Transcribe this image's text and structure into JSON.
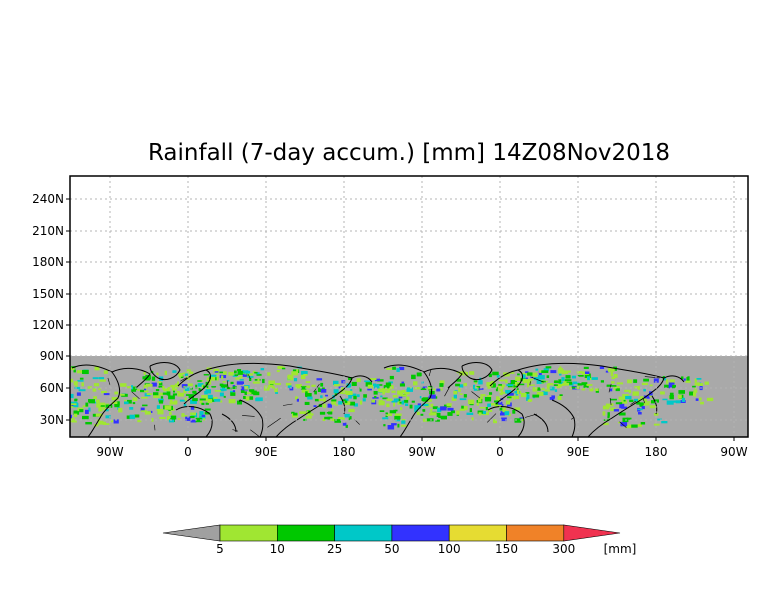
{
  "title": "Rainfall (7-day accum.) [mm] 14Z08Nov2018",
  "y_ticks": [
    "240N",
    "210N",
    "180N",
    "150N",
    "120N",
    "90N",
    "60N",
    "30N"
  ],
  "x_ticks": [
    "90W",
    "0",
    "90E",
    "180",
    "90W",
    "0",
    "90E",
    "180",
    "90W"
  ],
  "colorbar": {
    "unit": "[mm]",
    "labels": [
      "5",
      "10",
      "25",
      "50",
      "100",
      "150",
      "300"
    ],
    "colors": {
      "under": "#a0a0a0",
      "bins": [
        "#a0e632",
        "#00c800",
        "#00c8c8",
        "#3232ff",
        "#e6dc32",
        "#f08228"
      ],
      "over": "#f03250"
    }
  },
  "colors": {
    "land_background": "#a9a9a9",
    "coastline": "#000000",
    "gridline": "#b4b4b4"
  }
}
